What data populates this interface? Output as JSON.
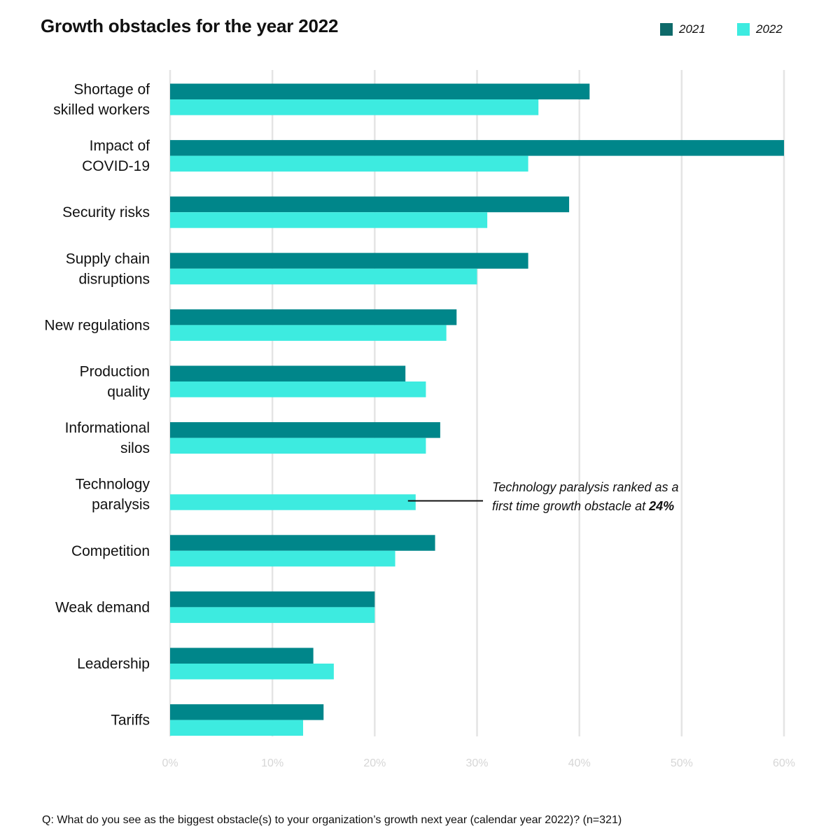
{
  "chart_data": {
    "type": "bar",
    "orientation": "horizontal",
    "title": "Growth obstacles for the year 2022",
    "categories": [
      [
        "Shortage of",
        "skilled workers"
      ],
      [
        "Impact of",
        "COVID-19"
      ],
      [
        "Security risks"
      ],
      [
        "Supply chain",
        "disruptions"
      ],
      [
        "New regulations"
      ],
      [
        "Production",
        "quality"
      ],
      [
        "Informational",
        "silos"
      ],
      [
        "Technology",
        "paralysis"
      ],
      [
        "Competition"
      ],
      [
        "Weak demand"
      ],
      [
        "Leadership"
      ],
      [
        "Tariffs"
      ]
    ],
    "series": [
      {
        "name": "2021",
        "color": "#00868a",
        "values": [
          41,
          60,
          39,
          35,
          28,
          23,
          26.4,
          null,
          25.9,
          20,
          14,
          15
        ]
      },
      {
        "name": "2022",
        "color": "#3debe0",
        "values": [
          36,
          35,
          31,
          30,
          27,
          25,
          25,
          24,
          22,
          20,
          16,
          13
        ]
      }
    ],
    "xlim": [
      0,
      60
    ],
    "x_ticks": [
      "0%",
      "10%",
      "20%",
      "30%",
      "40%",
      "50%",
      "60%"
    ],
    "grid": true,
    "legend_position": "top-right",
    "legend_swatch_colors": {
      "2021": "#0e6a6a",
      "2022": "#3debe0"
    },
    "annotation": {
      "line1": "Technology paralysis ranked as a",
      "line2_prefix": "first time growth obstacle at ",
      "line2_value": "24%"
    }
  },
  "footnote": "Q: What do you see as the biggest obstacle(s) to your organization’s growth next year (calendar year 2022)? (n=321)",
  "colors": {
    "grid": "#e4e4e4",
    "tick_label": "#d6d6d6",
    "text": "#111111"
  }
}
